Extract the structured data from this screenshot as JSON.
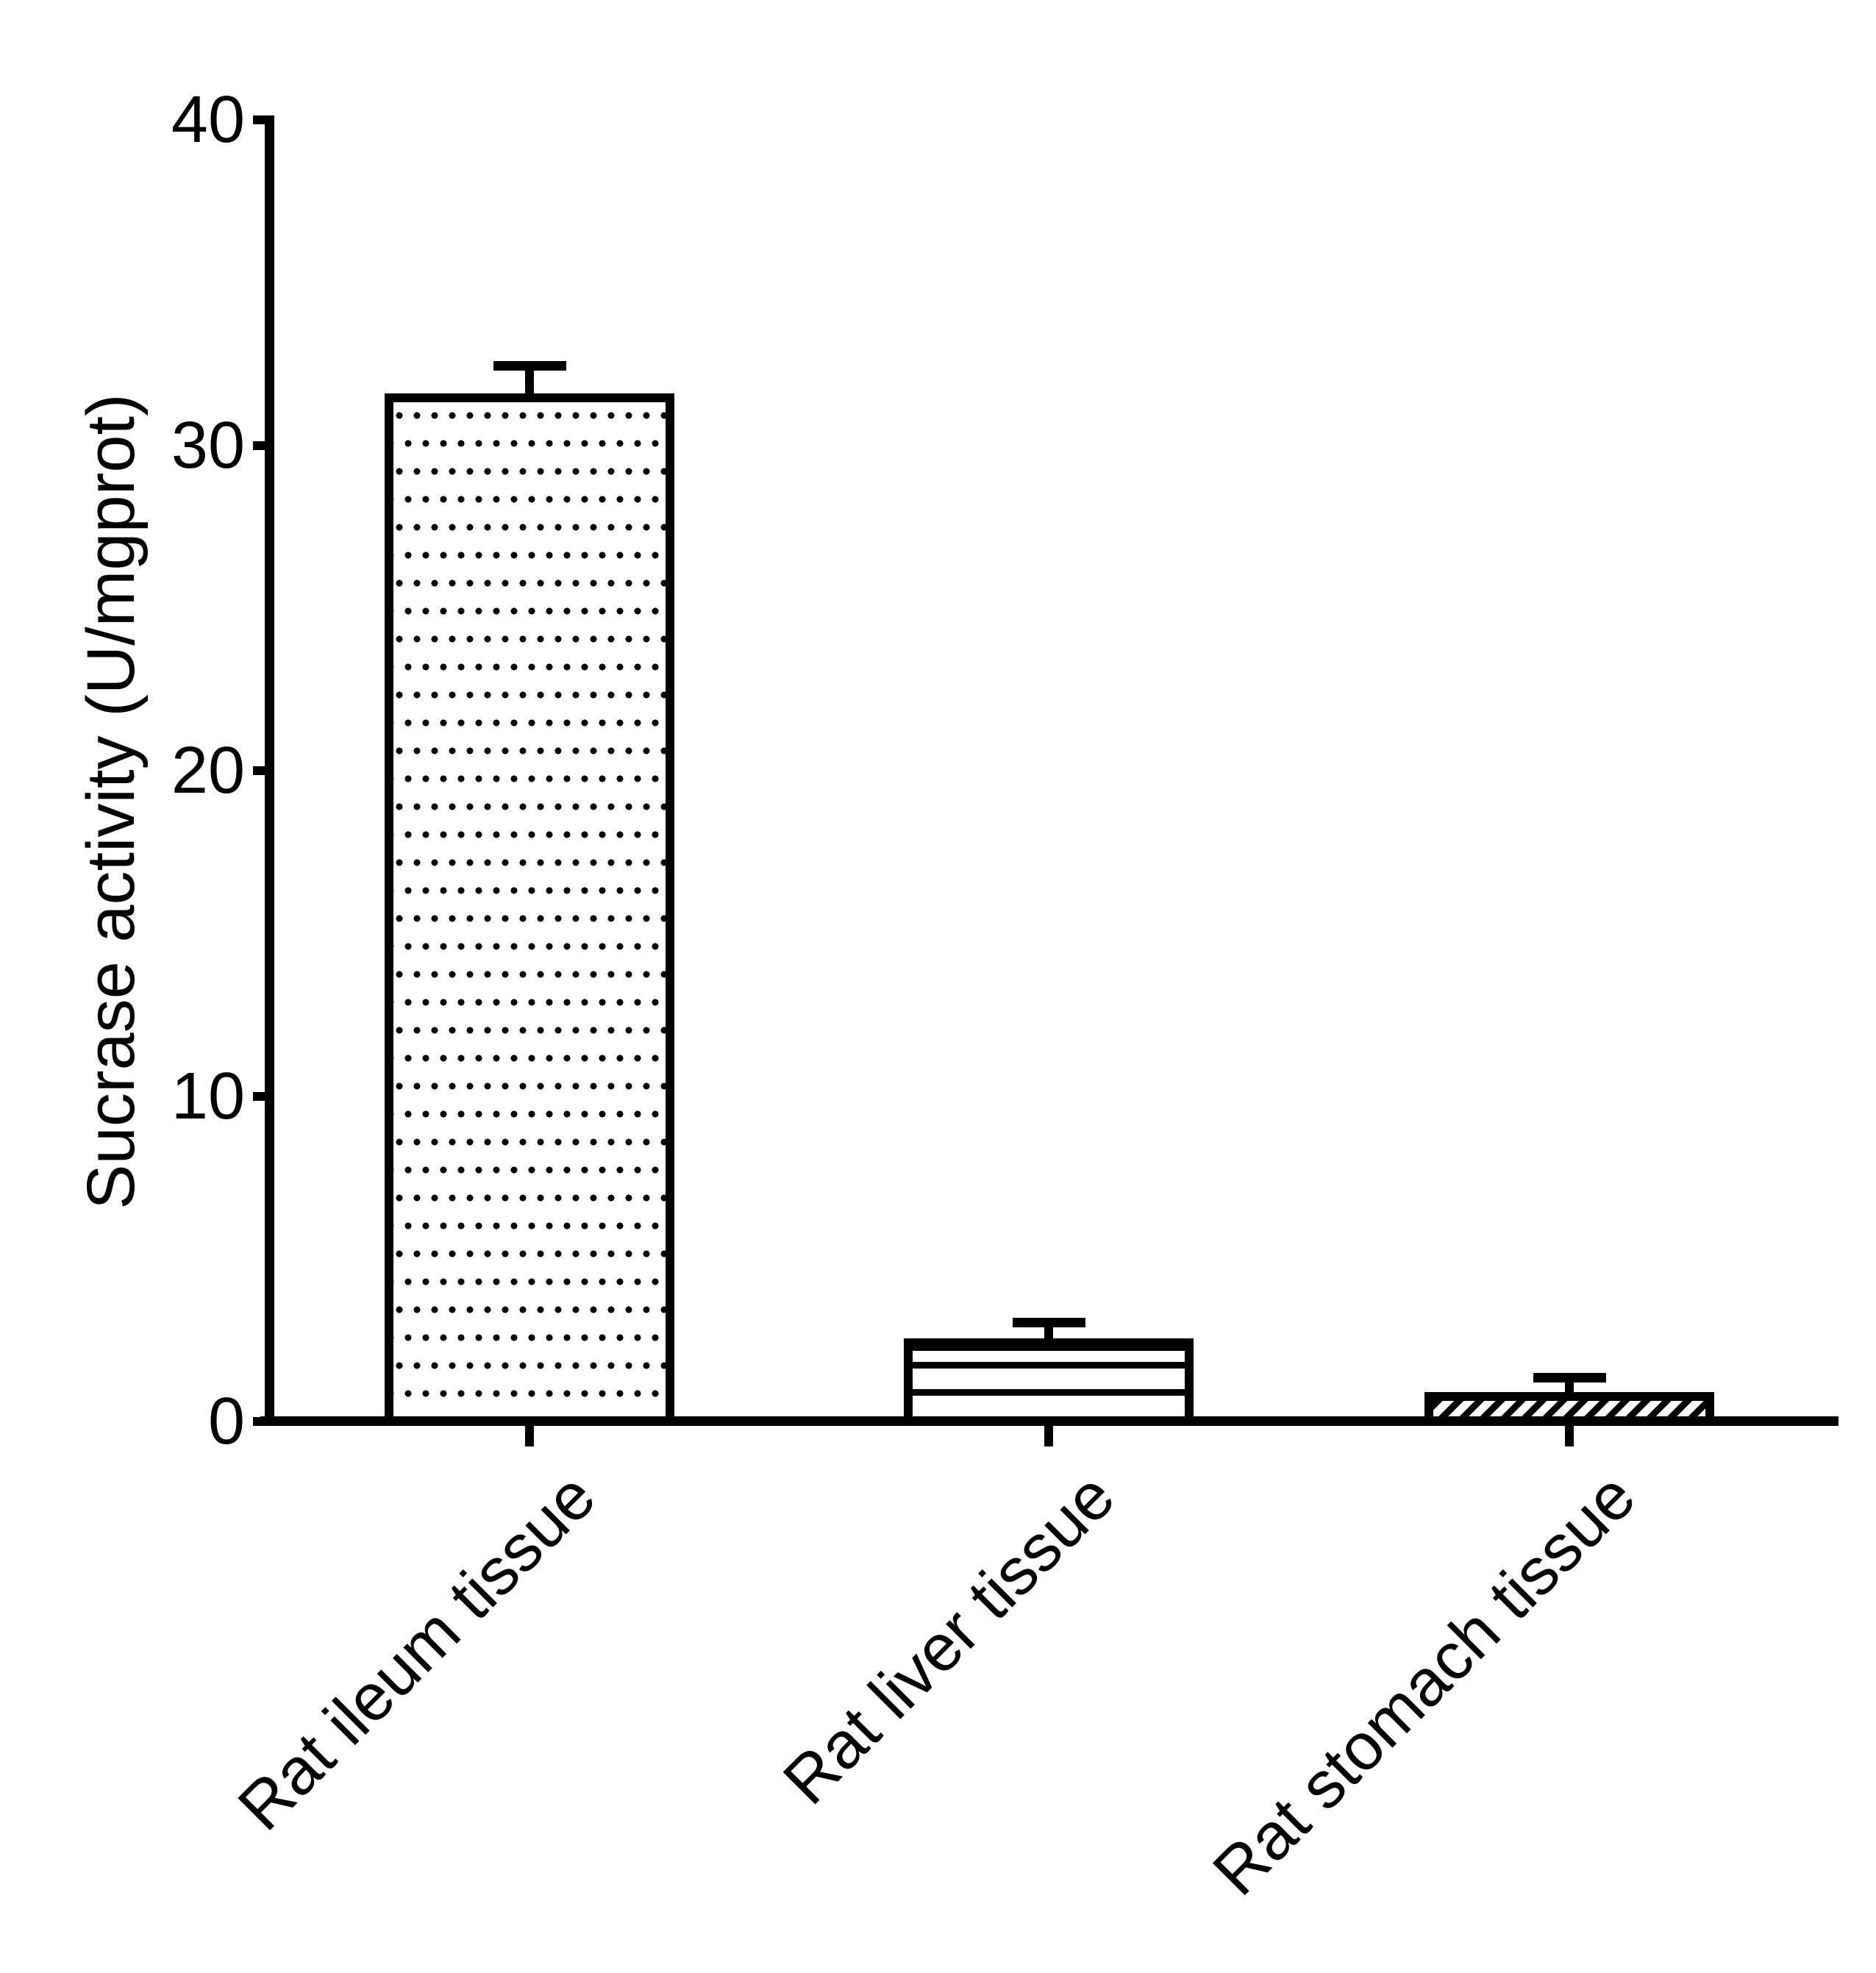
{
  "chart_data": {
    "type": "bar",
    "title": "",
    "categories": [
      "Rat ileum tissue",
      "Rat liver tissue",
      "Rat stomach tissue"
    ],
    "values": [
      31.6,
      2.55,
      0.9
    ],
    "errors_upper": [
      0.85,
      0.5,
      0.45
    ],
    "error_bar_style": "upper-cap-only",
    "ylabel": "Sucrase activity (U/mgprot)",
    "xlabel": "",
    "ylim": [
      0,
      40
    ],
    "yticks": [
      0,
      10,
      20,
      30,
      40
    ],
    "bar_patterns": [
      "dots",
      "horizontal-lines",
      "diagonal-stripes"
    ],
    "bar_fill": "#ffffff",
    "line_color": "#000000",
    "background": "#ffffff",
    "grid": "off",
    "legend_position": "none",
    "x_tick_label_rotation_deg": 45
  }
}
